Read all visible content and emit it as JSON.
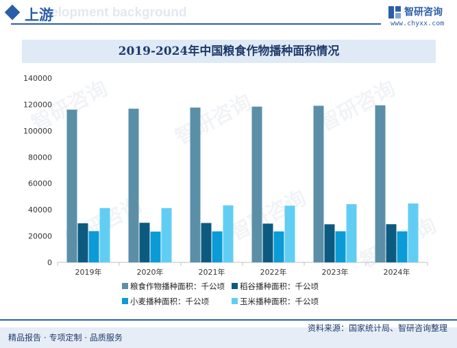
{
  "header": {
    "section_title": "上游",
    "bg_text": "elopment background",
    "brand_name": "智研咨询",
    "brand_url": "www.chyxx.com"
  },
  "chart_data": {
    "type": "bar",
    "title": "2019-2024年中国粮食作物播种面积情况",
    "categories": [
      "2019年",
      "2020年",
      "2021年",
      "2022年",
      "2023年",
      "2024年"
    ],
    "ylim": [
      0,
      140000
    ],
    "yticks": [
      0,
      20000,
      40000,
      60000,
      80000,
      100000,
      120000,
      140000
    ],
    "grid": false,
    "legend_position": "bottom",
    "series": [
      {
        "name": "粮食作物播种面积：千公顷",
        "color": "#5b8fa8",
        "values": [
          116064,
          116768,
          117631,
          118332,
          118969,
          119319
        ]
      },
      {
        "name": "稻谷播种面积：千公顷",
        "color": "#0d5a80",
        "values": [
          29694,
          30076,
          29921,
          29450,
          28949,
          29007
        ]
      },
      {
        "name": "小麦播种面积：千公顷",
        "color": "#0b9bd6",
        "values": [
          23728,
          23380,
          23568,
          23518,
          23627,
          23587
        ]
      },
      {
        "name": "玉米播种面积：千公顷",
        "color": "#62cdf3",
        "values": [
          41284,
          41264,
          43324,
          43070,
          44219,
          44741
        ]
      }
    ]
  },
  "footer": {
    "source": "资料来源：国家统计局、智研咨询整理",
    "slogan": "精品报告 · 专项定制 · 品质服务"
  }
}
